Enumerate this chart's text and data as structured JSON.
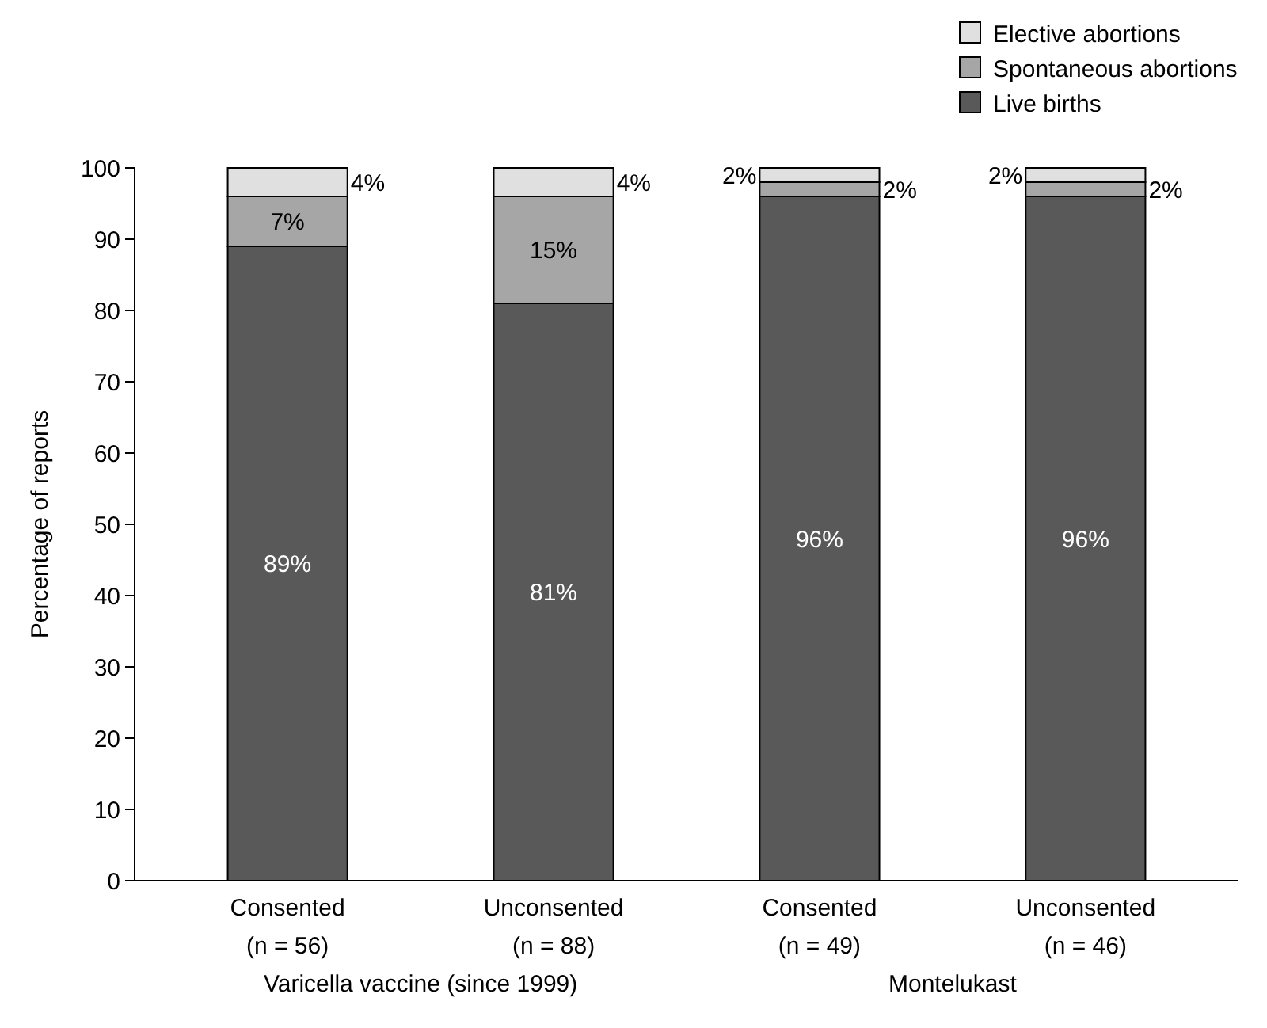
{
  "chart_data": {
    "type": "bar",
    "stacked": true,
    "ylabel": "Percentage of reports",
    "categories": [
      "Consented\n(n = 56)",
      "Unconsented\n(n = 88)",
      "Consented\n(n = 49)",
      "Unconsented\n(n = 46)"
    ],
    "annotations": [
      "Varicella vaccine (since 1999)",
      "Montelukast"
    ],
    "series": [
      {
        "name": "Live births",
        "color": "#595959",
        "values": [
          89,
          81,
          96,
          96
        ],
        "value_labels": [
          "89%",
          "81%",
          "96%",
          "96%"
        ]
      },
      {
        "name": "Spontaneous abortions",
        "color": "#a6a6a6",
        "values": [
          7,
          15,
          2,
          2
        ],
        "value_labels": [
          "7%",
          "15%",
          "2%",
          "2%"
        ]
      },
      {
        "name": "Elective abortions",
        "color": "#e0e0e0",
        "values": [
          4,
          4,
          2,
          2
        ],
        "value_labels": [
          "4%",
          "4%",
          "2%",
          "2%"
        ]
      }
    ],
    "ylim": [
      0,
      100
    ],
    "yticks": [
      0,
      10,
      20,
      30,
      40,
      50,
      60,
      70,
      80,
      90,
      100
    ],
    "grid": false,
    "legend": "top right"
  }
}
